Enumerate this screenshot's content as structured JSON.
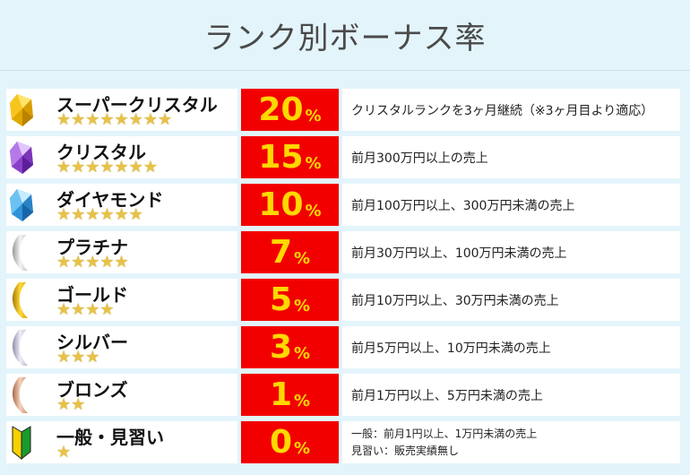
{
  "title": "ランク別ボーナス率",
  "colors": {
    "background": "#e3f4fb",
    "percent_bg": "#f20000",
    "percent_text": "#ffd800",
    "star": "#e7c247"
  },
  "ranks": [
    {
      "name": "スーパークリスタル",
      "stars": "★★★★★★★★",
      "stars_count": 8,
      "percent": "20",
      "unit": "%",
      "icon": "super-crystal-gem-icon",
      "description": "クリスタルランクを3ヶ月継続（※3ヶ月目より適応）"
    },
    {
      "name": "クリスタル",
      "stars": "★★★★★★★",
      "stars_count": 7,
      "percent": "15",
      "unit": "%",
      "icon": "crystal-gem-icon",
      "description": "前月300万円以上の売上"
    },
    {
      "name": "ダイヤモンド",
      "stars": "★★★★★★",
      "stars_count": 6,
      "percent": "10",
      "unit": "%",
      "icon": "diamond-gem-icon",
      "description": "前月100万円以上、300万円未満の売上"
    },
    {
      "name": "プラチナ",
      "stars": "★★★★★",
      "stars_count": 5,
      "percent": "7",
      "unit": "%",
      "icon": "platinum-ribbon-icon",
      "description": "前月30万円以上、100万円未満の売上"
    },
    {
      "name": "ゴールド",
      "stars": "★★★★",
      "stars_count": 4,
      "percent": "5",
      "unit": "%",
      "icon": "gold-ribbon-icon",
      "description": "前月10万円以上、30万円未満の売上"
    },
    {
      "name": "シルバー",
      "stars": "★★★",
      "stars_count": 3,
      "percent": "3",
      "unit": "%",
      "icon": "silver-ribbon-icon",
      "description": "前月5万円以上、10万円未満の売上"
    },
    {
      "name": "ブロンズ",
      "stars": "★★",
      "stars_count": 2,
      "percent": "1",
      "unit": "%",
      "icon": "bronze-ribbon-icon",
      "description": "前月1万円以上、5万円未満の売上"
    },
    {
      "name": "一般・見習い",
      "stars": "★",
      "stars_count": 1,
      "percent": "0",
      "unit": "%",
      "icon": "beginner-mark-icon",
      "description_lines": [
        "一般：前月1円以上、1万円未満の売上",
        "見習い：販売実績無し"
      ]
    }
  ]
}
